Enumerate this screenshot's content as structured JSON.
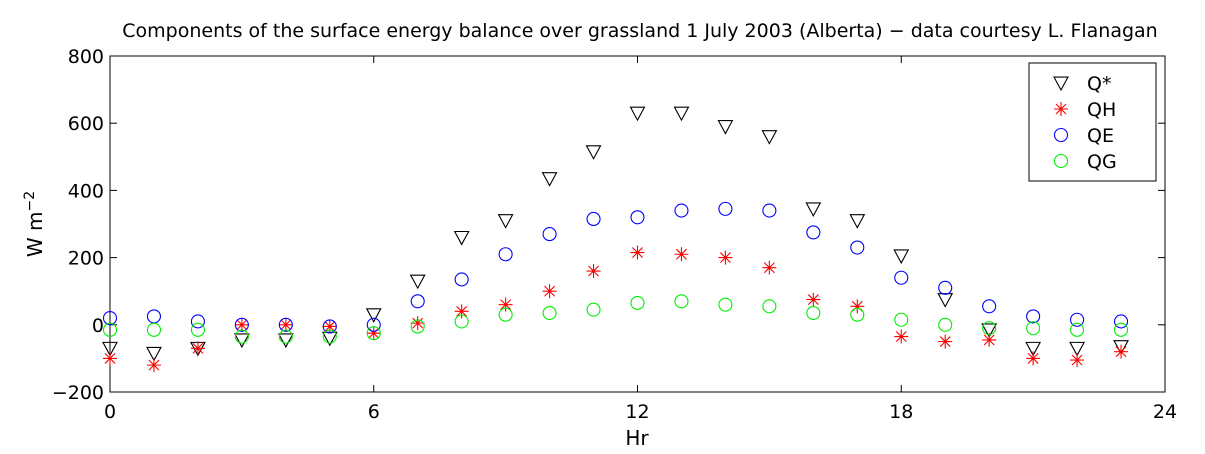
{
  "chart_data": {
    "type": "scatter",
    "title": "Components of the surface energy balance over grassland 1 July 2003 (Alberta) − data courtesy L. Flanagan",
    "xlabel": "Hr",
    "ylabel_base": "W m",
    "ylabel_sup": "−2",
    "xlim": [
      0,
      24
    ],
    "ylim": [
      -200,
      800
    ],
    "xticks": [
      0,
      6,
      12,
      18,
      24
    ],
    "yticks": [
      -200,
      0,
      200,
      400,
      600,
      800
    ],
    "xtick_labels": [
      "0",
      "6",
      "12",
      "18",
      "24"
    ],
    "ytick_labels": [
      "−200",
      "0",
      "200",
      "400",
      "600",
      "800"
    ],
    "grid": false,
    "legend_position": "top-right",
    "x": [
      0,
      1,
      2,
      3,
      4,
      5,
      6,
      7,
      8,
      9,
      10,
      11,
      12,
      13,
      14,
      15,
      16,
      17,
      18,
      19,
      20,
      21,
      22,
      23
    ],
    "series": [
      {
        "name": "Q*",
        "marker": "triangle-down",
        "color": "#000000",
        "values": [
          -70,
          -85,
          -70,
          -45,
          -45,
          -40,
          30,
          130,
          260,
          310,
          435,
          515,
          630,
          630,
          590,
          560,
          345,
          310,
          205,
          75,
          -15,
          -70,
          -70,
          -65
        ]
      },
      {
        "name": "QH",
        "marker": "asterisk",
        "color": "#ff0000",
        "values": [
          -100,
          -120,
          -70,
          0,
          0,
          -5,
          -25,
          5,
          40,
          60,
          100,
          160,
          215,
          210,
          200,
          170,
          75,
          55,
          -35,
          -50,
          -45,
          -100,
          -105,
          -80
        ]
      },
      {
        "name": "QE",
        "marker": "circle",
        "color": "#0000ff",
        "values": [
          20,
          25,
          10,
          0,
          0,
          -5,
          0,
          70,
          135,
          210,
          270,
          315,
          320,
          340,
          345,
          340,
          275,
          230,
          140,
          110,
          55,
          25,
          15,
          10
        ]
      },
      {
        "name": "QG",
        "marker": "circle",
        "color": "#00ee00",
        "values": [
          -15,
          -15,
          -15,
          -35,
          -35,
          -35,
          -25,
          -5,
          10,
          30,
          35,
          45,
          65,
          70,
          60,
          55,
          35,
          30,
          15,
          0,
          -10,
          -10,
          -15,
          -15
        ]
      }
    ]
  }
}
